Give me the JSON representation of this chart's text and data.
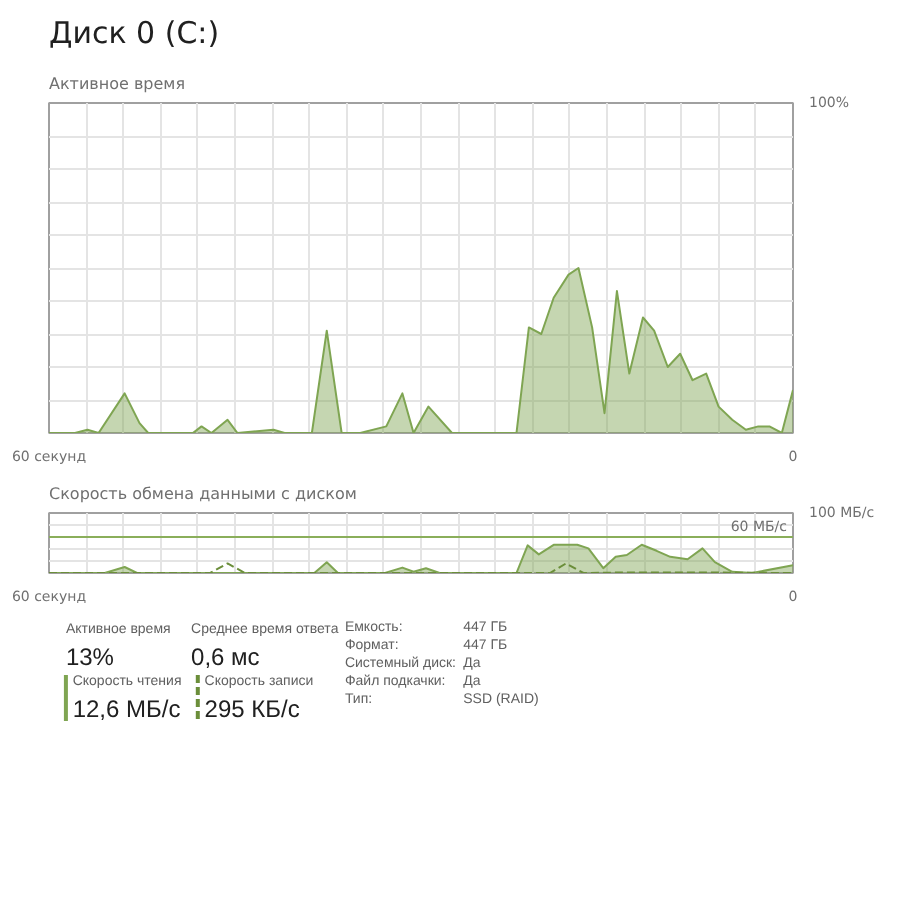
{
  "chart_data": [
    {
      "type": "area",
      "title": "Диск 0 (C:)",
      "subtitle": "Активное время",
      "xlim": [
        60,
        0
      ],
      "ylim": [
        0,
        100
      ],
      "xticks": [
        {
          "value": 60,
          "label": "60 секунд"
        },
        {
          "value": 57,
          "label": null
        },
        {
          "value": 54,
          "label": null
        },
        {
          "value": 51,
          "label": null
        },
        {
          "value": 48,
          "label": null
        },
        {
          "value": 45,
          "label": null
        },
        {
          "value": 42,
          "label": null
        },
        {
          "value": 39,
          "label": null
        },
        {
          "value": 36,
          "label": null
        },
        {
          "value": 33,
          "label": null
        },
        {
          "value": 30,
          "label": null
        },
        {
          "value": 27,
          "label": null
        },
        {
          "value": 24,
          "label": null
        },
        {
          "value": 21,
          "label": null
        },
        {
          "value": 18,
          "label": null
        },
        {
          "value": 15,
          "label": null
        },
        {
          "value": 12,
          "label": null
        },
        {
          "value": 9,
          "label": null
        },
        {
          "value": 6,
          "label": null
        },
        {
          "value": 3,
          "label": null
        },
        {
          "value": 0,
          "label": "0"
        }
      ],
      "yticks": [
        {
          "value": 0,
          "label": null
        },
        {
          "value": 10,
          "label": null
        },
        {
          "value": 20,
          "label": null
        },
        {
          "value": 30,
          "label": null
        },
        {
          "value": 40,
          "label": null
        },
        {
          "value": 50,
          "label": null
        },
        {
          "value": 60,
          "label": null
        },
        {
          "value": 70,
          "label": null
        },
        {
          "value": 80,
          "label": null
        },
        {
          "value": 90,
          "label": null
        },
        {
          "value": 100,
          "label": "100%"
        }
      ],
      "grid": true,
      "series": [
        {
          "color": "#7fa552",
          "x": [
            60,
            57.9,
            56.9,
            56,
            53.9,
            52.7,
            52,
            48.4,
            47.7,
            46.9,
            45.6,
            44.8,
            41.9,
            41,
            38.8,
            37.6,
            36.4,
            34.9,
            32.8,
            31.5,
            30.6,
            29.4,
            27.5,
            26.8,
            25.7,
            22.3,
            21.3,
            20.3,
            19.3,
            18.1,
            17.3,
            16.2,
            15.2,
            14.2,
            13.2,
            12.1,
            11.2,
            10.1,
            9.1,
            8.1,
            7,
            6,
            4.9,
            3.8,
            2.8,
            1.9,
            0.9,
            0
          ],
          "values": [
            0,
            0,
            1,
            0,
            12,
            3,
            0,
            0,
            2,
            0,
            4,
            0,
            1,
            0,
            0,
            31,
            0,
            0,
            2,
            12,
            0,
            8,
            0,
            0,
            0,
            0,
            32,
            30,
            41,
            48,
            50,
            32,
            6,
            43,
            18,
            35,
            31,
            20,
            24,
            16,
            18,
            8,
            4,
            1,
            2,
            2,
            0,
            13
          ]
        }
      ]
    },
    {
      "type": "area",
      "title": "Скорость обмена данными с диском",
      "xlim": [
        60,
        0
      ],
      "ylim": [
        0,
        100
      ],
      "xticks": [
        {
          "value": 60,
          "label": "60 секунд"
        },
        {
          "value": 57,
          "label": null
        },
        {
          "value": 54,
          "label": null
        },
        {
          "value": 51,
          "label": null
        },
        {
          "value": 48,
          "label": null
        },
        {
          "value": 45,
          "label": null
        },
        {
          "value": 42,
          "label": null
        },
        {
          "value": 39,
          "label": null
        },
        {
          "value": 36,
          "label": null
        },
        {
          "value": 33,
          "label": null
        },
        {
          "value": 30,
          "label": null
        },
        {
          "value": 27,
          "label": null
        },
        {
          "value": 24,
          "label": null
        },
        {
          "value": 21,
          "label": null
        },
        {
          "value": 18,
          "label": null
        },
        {
          "value": 15,
          "label": null
        },
        {
          "value": 12,
          "label": null
        },
        {
          "value": 9,
          "label": null
        },
        {
          "value": 6,
          "label": null
        },
        {
          "value": 3,
          "label": null
        },
        {
          "value": 0,
          "label": "0"
        }
      ],
      "yticks": [
        {
          "value": 0,
          "label": null
        },
        {
          "value": 20,
          "label": null
        },
        {
          "value": 40,
          "label": null
        },
        {
          "value": 80,
          "label": null
        },
        {
          "value": 100,
          "label": "100 МБ/с"
        }
      ],
      "grid": true,
      "ref_lines": [
        {
          "axis": "y",
          "value": 60,
          "label": "60 МБ/с",
          "color": "#8aae5a"
        }
      ],
      "series": [
        {
          "type": "area",
          "color": "#7fa552",
          "x": [
            60,
            55.5,
            53.9,
            52.9,
            38.6,
            37.6,
            36.7,
            32.9,
            31.5,
            30.6,
            29.6,
            28.5,
            22.3,
            21.4,
            20.5,
            19.3,
            17.4,
            16.5,
            15.3,
            14.3,
            13.4,
            12.2,
            11,
            9.9,
            8.5,
            7.3,
            6.3,
            4.9,
            3.3,
            0
          ],
          "values": [
            0,
            0,
            10,
            0,
            0,
            18,
            0,
            0,
            9,
            2,
            8,
            0,
            0,
            46,
            31,
            47,
            47,
            41,
            8,
            27,
            30,
            47,
            37,
            27,
            23,
            41,
            18,
            2,
            0,
            13
          ]
        },
        {
          "type": "line",
          "line_style": "dashed",
          "color": "#6b8e3a",
          "x": [
            60,
            47,
            45.6,
            44.2,
            19.6,
            18.3,
            16.9,
            13,
            9,
            0
          ],
          "values": [
            0,
            0,
            16,
            0,
            0,
            16,
            0,
            1,
            1,
            0
          ]
        }
      ]
    },
    {
      "type": "other",
      "annotations": [
        "Активное время",
        "13%",
        "Среднее время ответа",
        "0,6 мс",
        "Скорость чтения",
        "12,6 МБ/с",
        "Скорость записи",
        "295 КБ/с",
        "Емкость:",
        "447 ГБ",
        "Формат:",
        "447 ГБ",
        "Системный диск:",
        "Да",
        "Файл подкачки:",
        "Да",
        "Тип:",
        "SSD (RAID)"
      ]
    }
  ]
}
